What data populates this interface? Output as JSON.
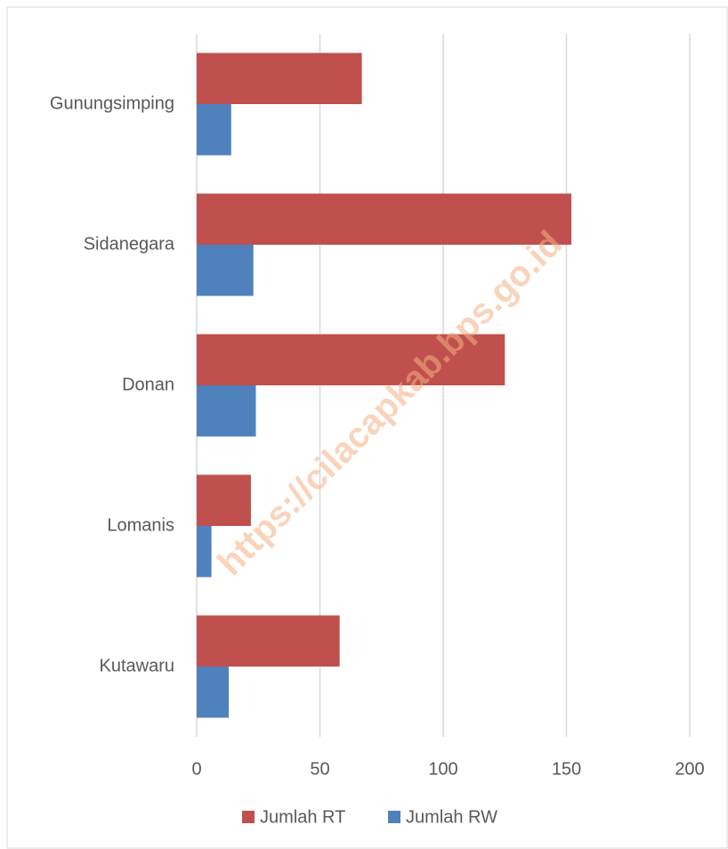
{
  "chart_data": {
    "type": "hbar",
    "categories": [
      "Gunungsimping",
      "Sidanegara",
      "Donan",
      "Lomanis",
      "Kutawaru"
    ],
    "series": [
      {
        "name": "Jumlah RT",
        "color": "#c0504d",
        "values": [
          67,
          152,
          125,
          22,
          58
        ]
      },
      {
        "name": "Jumlah RW",
        "color": "#4f81bd",
        "values": [
          14,
          23,
          24,
          6,
          13
        ]
      }
    ],
    "xlim": [
      0,
      200
    ],
    "xticks": [
      0,
      50,
      100,
      150,
      200
    ],
    "grid": true,
    "legend": "bottom",
    "watermark": "https://cilacapkab.bps.go.id"
  }
}
